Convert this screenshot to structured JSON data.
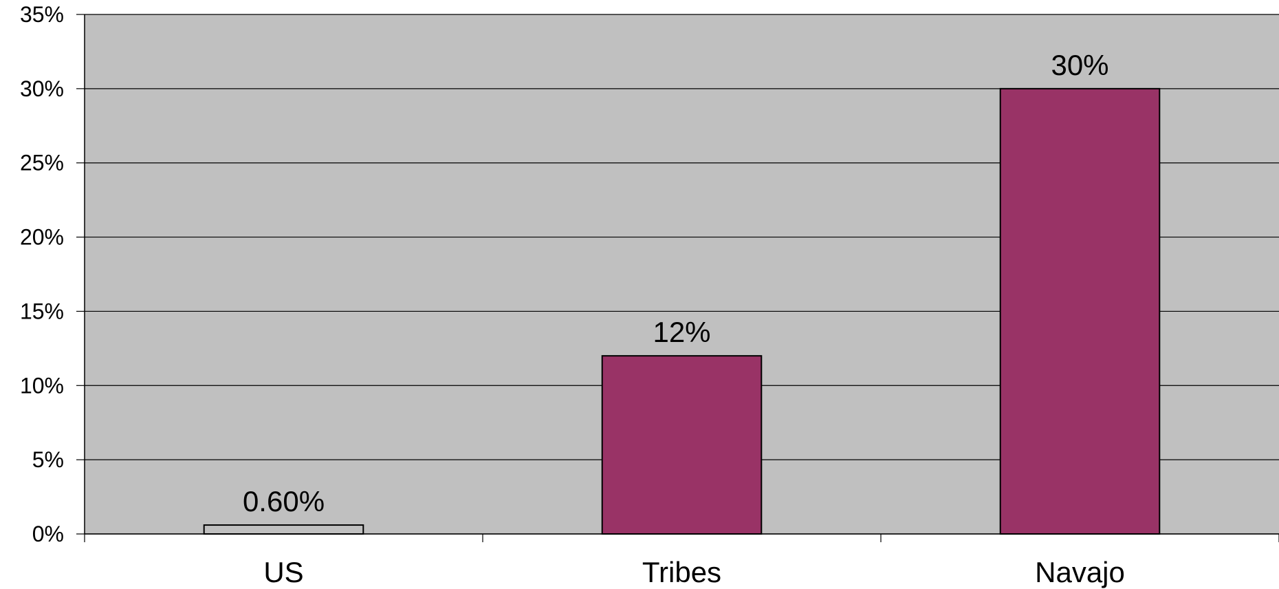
{
  "chart_data": {
    "type": "bar",
    "title": "",
    "xlabel": "",
    "ylabel": "",
    "categories": [
      "US",
      "Tribes",
      "Navajo"
    ],
    "values": [
      0.6,
      12,
      30
    ],
    "data_labels": [
      "0.60%",
      "12%",
      "30%"
    ],
    "ylim": [
      0,
      35
    ],
    "yticks": [
      0,
      5,
      10,
      15,
      20,
      25,
      30,
      35
    ],
    "ytick_labels": [
      "0%",
      "5%",
      "10%",
      "15%",
      "20%",
      "25%",
      "30%",
      "35%"
    ],
    "grid": true,
    "legend": "none",
    "colors": {
      "plot_background": "#c0c0c0",
      "bar_fills": [
        "#c0c0c0",
        "#993366",
        "#993366"
      ],
      "bar_stroke": "#000000",
      "gridline": "#000000"
    }
  }
}
